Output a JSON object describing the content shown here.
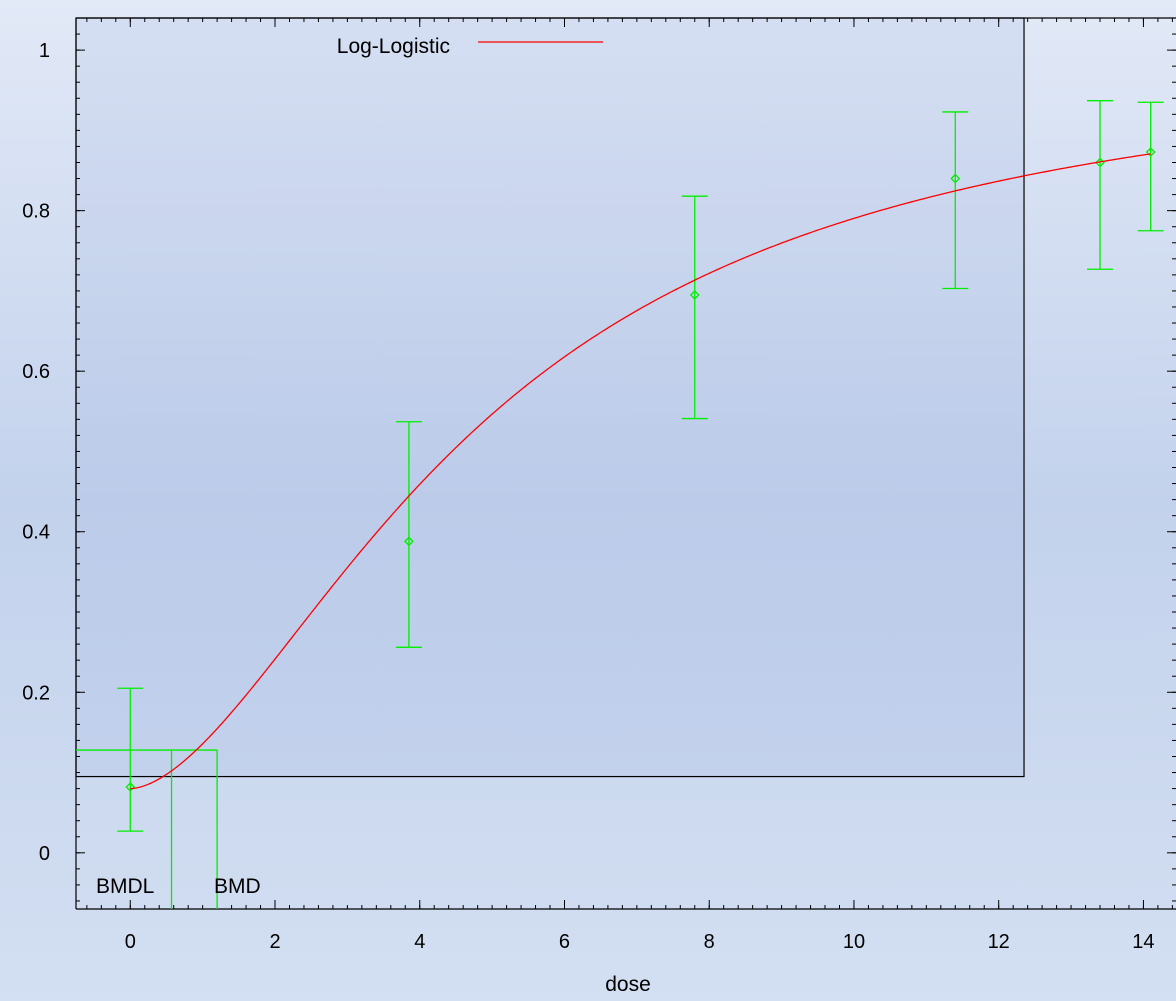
{
  "chart_data": {
    "type": "scatter",
    "title": "",
    "xlabel": "dose",
    "ylabel": "",
    "xlim": [
      -0.75,
      14.45
    ],
    "ylim": [
      -0.07,
      1.04
    ],
    "x_ticks": [
      0,
      2,
      4,
      6,
      8,
      10,
      12,
      14
    ],
    "y_ticks": [
      0,
      0.2,
      0.4,
      0.6,
      0.8,
      1
    ],
    "x_tick_labels": [
      "0",
      "2",
      "4",
      "6",
      "8",
      "10",
      "12",
      "14"
    ],
    "y_tick_labels": [
      "0",
      "0.2",
      "0.4",
      "0.6",
      "0.8",
      "1"
    ],
    "grid": false,
    "legend_position": "top",
    "colors": {
      "fit": "#ff0000",
      "data": "#00ee00",
      "frame": "#000000"
    },
    "series": [
      {
        "name": "Log-Logistic",
        "kind": "line",
        "color": "#ff0000",
        "model": {
          "background": 0.08,
          "intercept": -2.74,
          "slope": 1.72,
          "x_start": 0,
          "x_end": 14.1
        }
      },
      {
        "kind": "points-with-error-bars",
        "color": "#00ee00",
        "points": [
          {
            "x": 0,
            "y": 0.082,
            "lower": 0.027,
            "upper": 0.205
          },
          {
            "x": 3.85,
            "y": 0.388,
            "lower": 0.256,
            "upper": 0.537
          },
          {
            "x": 7.8,
            "y": 0.695,
            "lower": 0.541,
            "upper": 0.818
          },
          {
            "x": 11.4,
            "y": 0.84,
            "lower": 0.703,
            "upper": 0.923
          },
          {
            "x": 13.4,
            "y": 0.86,
            "lower": 0.727,
            "upper": 0.937
          },
          {
            "x": 14.1,
            "y": 0.873,
            "lower": 0.775,
            "upper": 0.935
          }
        ]
      }
    ],
    "bmd": {
      "bmdl_label": "BMDL",
      "bmd_label": "BMD",
      "bmdl": 0.57,
      "bmd": 1.2,
      "response": 0.128
    },
    "legend_box": {
      "x_from": -0.75,
      "x_to": 12.35,
      "y_from": 0.095,
      "y_to": 1.04
    }
  }
}
